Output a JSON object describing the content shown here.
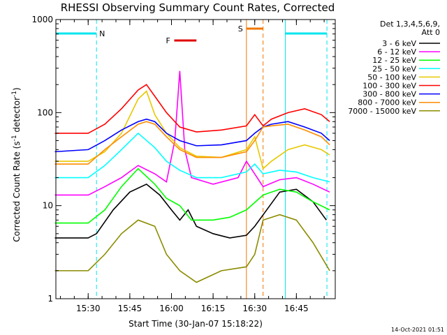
{
  "chart_data": {
    "type": "line",
    "title": "RHESSI Observing Summary Count Rates, Corrected",
    "xlabel": "Start Time (30-Jan-07 15:18:22)",
    "ylabel_parts": [
      "Corrected Count Rate (s",
      "-1",
      " detector",
      "-1",
      ")"
    ],
    "ylabel": "Corrected Count Rate (s-1 detector-1)",
    "y_scale": "log",
    "ylim": [
      1,
      1000
    ],
    "xlim": [
      "15:18:22",
      "16:59:00"
    ],
    "x_ticks": [
      "15:30",
      "15:45",
      "16:00",
      "16:15",
      "16:30",
      "16:45"
    ],
    "y_ticks": [
      "1",
      "10",
      "100",
      "1000"
    ],
    "timestamp": "14-Oct-2021 01:51",
    "legend_header": [
      "Det 1,3,4,5,6,9,",
      "Att 0"
    ],
    "legend_placement": "right",
    "markers": [
      {
        "label": "N",
        "color": "#00e5ee",
        "segments": [
          [
            "15:18:22",
            "15:33:00"
          ],
          [
            "16:41:00",
            "16:56:00"
          ]
        ]
      },
      {
        "label": "S",
        "color": "#f07800",
        "segments": [
          [
            "16:27:00",
            "16:33:00"
          ]
        ]
      },
      {
        "label": "F",
        "color": "#e00000",
        "segments": [
          [
            "16:01:00",
            "16:09:00"
          ]
        ]
      }
    ],
    "shaded_gaps": [
      [
        "16:27:00",
        "16:33:00"
      ]
    ],
    "series": [
      {
        "name": "3 - 6 keV",
        "color": "#000000",
        "values": [
          [
            15.3,
            4.5
          ],
          [
            15.5,
            4.5
          ],
          [
            15.55,
            5
          ],
          [
            15.65,
            9
          ],
          [
            15.75,
            14
          ],
          [
            15.85,
            17
          ],
          [
            15.93,
            13
          ],
          [
            16.0,
            9
          ],
          [
            16.05,
            7
          ],
          [
            16.1,
            9
          ],
          [
            16.15,
            6
          ],
          [
            16.25,
            5
          ],
          [
            16.35,
            4.5
          ],
          [
            16.45,
            4.8
          ],
          [
            16.5,
            6
          ],
          [
            16.65,
            14
          ],
          [
            16.75,
            15
          ],
          [
            16.85,
            11
          ],
          [
            16.93,
            7
          ]
        ]
      },
      {
        "name": "6 - 12 keV",
        "color": "#ff00ff",
        "values": [
          [
            15.3,
            13
          ],
          [
            15.5,
            13
          ],
          [
            15.6,
            16
          ],
          [
            15.7,
            20
          ],
          [
            15.8,
            27
          ],
          [
            15.9,
            22
          ],
          [
            15.97,
            18
          ],
          [
            16.02,
            50
          ],
          [
            16.05,
            280
          ],
          [
            16.08,
            40
          ],
          [
            16.12,
            20
          ],
          [
            16.25,
            17
          ],
          [
            16.4,
            20
          ],
          [
            16.45,
            30
          ],
          [
            16.55,
            16
          ],
          [
            16.65,
            19
          ],
          [
            16.75,
            20
          ],
          [
            16.85,
            17
          ],
          [
            16.95,
            14
          ]
        ]
      },
      {
        "name": "12 - 25 keV",
        "color": "#00ff00",
        "values": [
          [
            15.3,
            6.5
          ],
          [
            15.5,
            6.5
          ],
          [
            15.6,
            9
          ],
          [
            15.7,
            16
          ],
          [
            15.8,
            25
          ],
          [
            15.9,
            17
          ],
          [
            15.97,
            12
          ],
          [
            16.05,
            10
          ],
          [
            16.12,
            7
          ],
          [
            16.25,
            7
          ],
          [
            16.35,
            7.5
          ],
          [
            16.45,
            9
          ],
          [
            16.55,
            13
          ],
          [
            16.65,
            15
          ],
          [
            16.75,
            14
          ],
          [
            16.85,
            11
          ],
          [
            16.95,
            9
          ]
        ]
      },
      {
        "name": "25 - 50 keV",
        "color": "#00ffff",
        "values": [
          [
            15.3,
            20
          ],
          [
            15.5,
            20
          ],
          [
            15.6,
            27
          ],
          [
            15.7,
            40
          ],
          [
            15.8,
            60
          ],
          [
            15.9,
            42
          ],
          [
            15.97,
            30
          ],
          [
            16.05,
            24
          ],
          [
            16.15,
            20
          ],
          [
            16.3,
            20
          ],
          [
            16.45,
            23
          ],
          [
            16.5,
            28
          ],
          [
            16.55,
            22
          ],
          [
            16.65,
            24
          ],
          [
            16.75,
            23
          ],
          [
            16.85,
            20
          ],
          [
            16.95,
            18
          ]
        ]
      },
      {
        "name": "50 - 100 keV",
        "color": "#e8c800",
        "values": [
          [
            15.3,
            30
          ],
          [
            15.5,
            30
          ],
          [
            15.6,
            38
          ],
          [
            15.7,
            60
          ],
          [
            15.8,
            140
          ],
          [
            15.85,
            170
          ],
          [
            15.9,
            95
          ],
          [
            15.97,
            60
          ],
          [
            16.05,
            42
          ],
          [
            16.15,
            34
          ],
          [
            16.3,
            33
          ],
          [
            16.45,
            40
          ],
          [
            16.5,
            55
          ],
          [
            16.55,
            25
          ],
          [
            16.6,
            30
          ],
          [
            16.7,
            40
          ],
          [
            16.8,
            45
          ],
          [
            16.9,
            40
          ],
          [
            16.95,
            35
          ]
        ]
      },
      {
        "name": "100 - 300 keV",
        "color": "#ff0000",
        "values": [
          [
            15.3,
            60
          ],
          [
            15.5,
            60
          ],
          [
            15.6,
            75
          ],
          [
            15.7,
            110
          ],
          [
            15.8,
            175
          ],
          [
            15.85,
            200
          ],
          [
            15.9,
            150
          ],
          [
            15.97,
            100
          ],
          [
            16.05,
            70
          ],
          [
            16.15,
            62
          ],
          [
            16.3,
            65
          ],
          [
            16.45,
            72
          ],
          [
            16.5,
            95
          ],
          [
            16.55,
            72
          ],
          [
            16.6,
            85
          ],
          [
            16.7,
            100
          ],
          [
            16.8,
            110
          ],
          [
            16.9,
            95
          ],
          [
            16.95,
            80
          ]
        ]
      },
      {
        "name": "300 - 800 keV",
        "color": "#0000ff",
        "values": [
          [
            15.3,
            38
          ],
          [
            15.5,
            40
          ],
          [
            15.6,
            50
          ],
          [
            15.7,
            65
          ],
          [
            15.8,
            80
          ],
          [
            15.85,
            85
          ],
          [
            15.9,
            80
          ],
          [
            15.97,
            60
          ],
          [
            16.05,
            50
          ],
          [
            16.15,
            44
          ],
          [
            16.3,
            45
          ],
          [
            16.45,
            50
          ],
          [
            16.5,
            60
          ],
          [
            16.55,
            70
          ],
          [
            16.6,
            75
          ],
          [
            16.7,
            80
          ],
          [
            16.8,
            70
          ],
          [
            16.9,
            60
          ],
          [
            16.95,
            50
          ]
        ]
      },
      {
        "name": "800 - 7000 keV",
        "color": "#ff8c00",
        "values": [
          [
            15.3,
            28
          ],
          [
            15.5,
            28
          ],
          [
            15.6,
            40
          ],
          [
            15.7,
            55
          ],
          [
            15.8,
            75
          ],
          [
            15.85,
            80
          ],
          [
            15.9,
            75
          ],
          [
            15.97,
            55
          ],
          [
            16.05,
            40
          ],
          [
            16.15,
            33
          ],
          [
            16.3,
            33
          ],
          [
            16.45,
            38
          ],
          [
            16.5,
            50
          ],
          [
            16.55,
            70
          ],
          [
            16.6,
            72
          ],
          [
            16.7,
            75
          ],
          [
            16.8,
            65
          ],
          [
            16.9,
            55
          ],
          [
            16.95,
            45
          ]
        ]
      },
      {
        "name": "7000 - 15000 keV",
        "color": "#8b8b00",
        "values": [
          [
            15.3,
            2
          ],
          [
            15.5,
            2
          ],
          [
            15.6,
            3
          ],
          [
            15.7,
            5
          ],
          [
            15.8,
            7
          ],
          [
            15.9,
            6
          ],
          [
            15.97,
            3
          ],
          [
            16.05,
            2
          ],
          [
            16.15,
            1.5
          ],
          [
            16.3,
            2
          ],
          [
            16.45,
            2.2
          ],
          [
            16.5,
            3
          ],
          [
            16.55,
            7
          ],
          [
            16.65,
            8
          ],
          [
            16.75,
            7
          ],
          [
            16.85,
            4
          ],
          [
            16.95,
            2
          ]
        ]
      }
    ]
  }
}
